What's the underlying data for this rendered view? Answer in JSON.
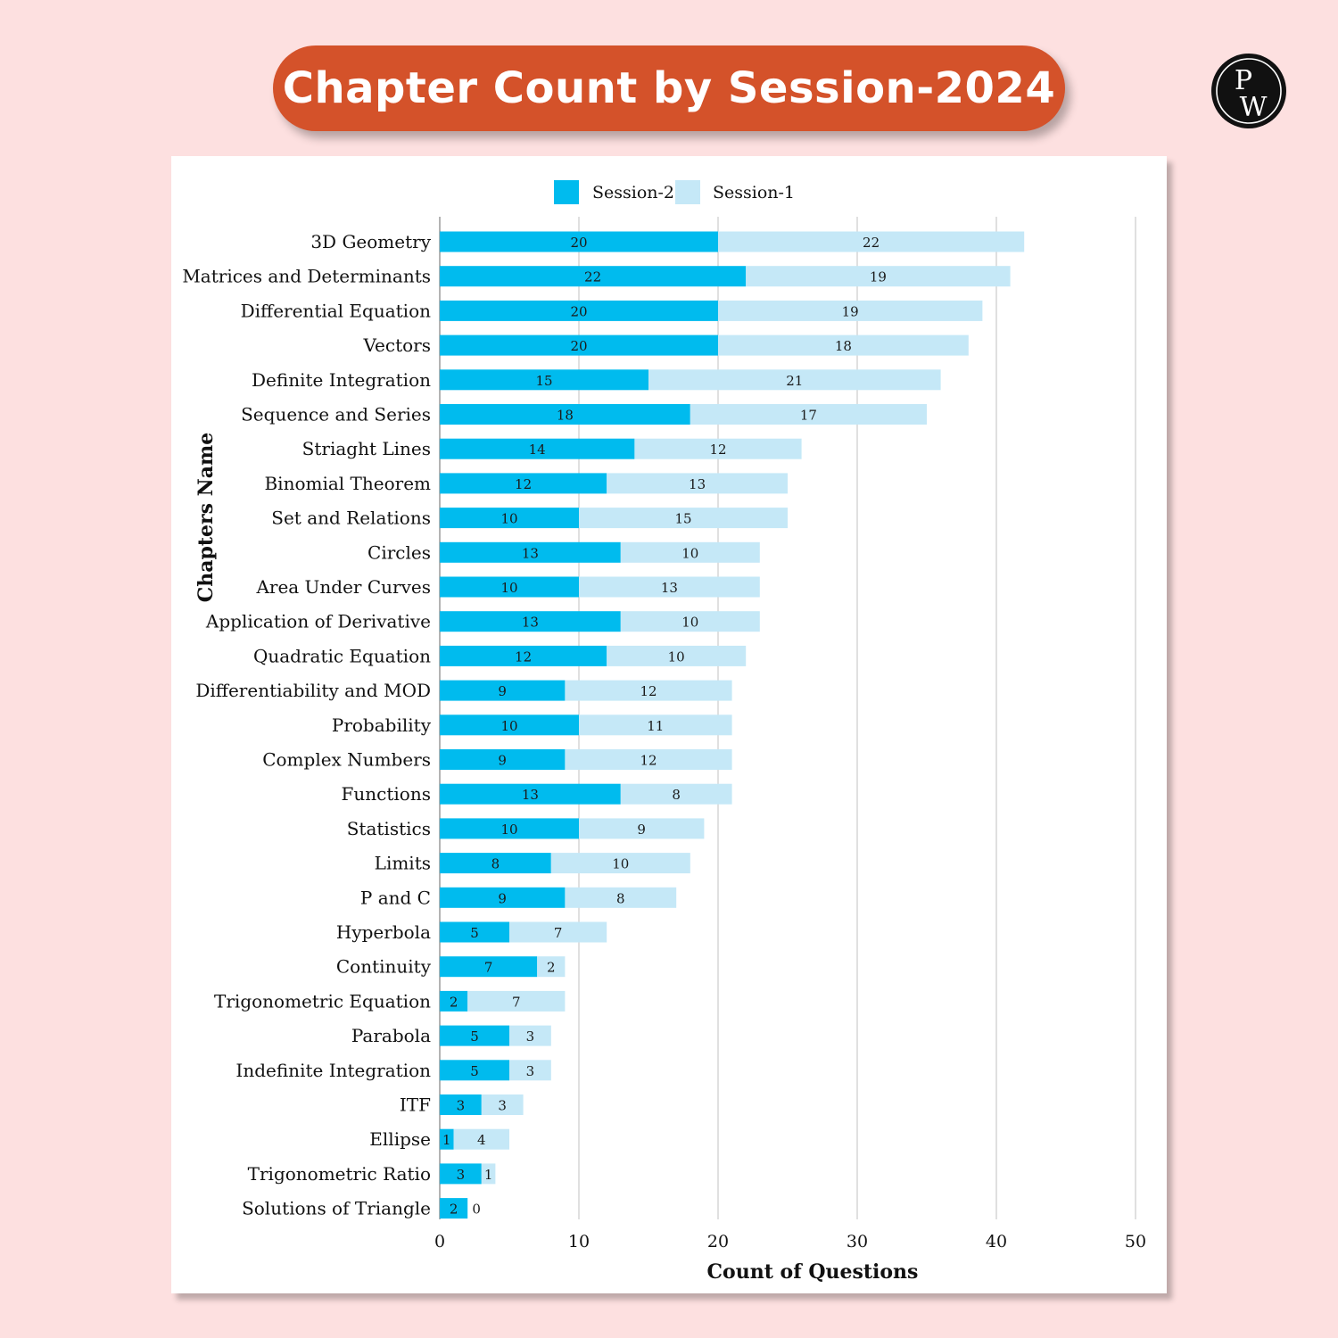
{
  "header": {
    "title": "Chapter Count by Session-2024",
    "logo_text": "PW"
  },
  "colors": {
    "background": "#fde0e0",
    "title_pill": "#d4522a",
    "session2": "#00bbee",
    "session1": "#c5e8f7"
  },
  "chart_data": {
    "type": "bar",
    "orientation": "horizontal",
    "stacked": true,
    "xlabel": "Count of Questions",
    "ylabel": "Chapters Name",
    "xlim": [
      0,
      50
    ],
    "xticks": [
      0,
      10,
      20,
      30,
      40,
      50
    ],
    "grid": "vertical",
    "legend_position": "top",
    "categories": [
      "3D Geometry",
      "Matrices and Determinants",
      "Differential Equation",
      "Vectors",
      "Definite Integration",
      "Sequence and Series",
      "Striaght Lines",
      "Binomial Theorem",
      "Set and Relations",
      "Circles",
      "Area Under Curves",
      "Application of Derivative",
      "Quadratic Equation",
      "Differentiability and MOD",
      "Probability",
      "Complex Numbers",
      "Functions",
      "Statistics",
      "Limits",
      "P and C",
      "Hyperbola",
      "Continuity",
      "Trigonometric Equation",
      "Parabola",
      "Indefinite Integration",
      "ITF",
      "Ellipse",
      "Trigonometric Ratio",
      "Solutions of Triangle"
    ],
    "series": [
      {
        "name": "Session-2",
        "color": "#00bbee",
        "values": [
          20,
          22,
          20,
          20,
          15,
          18,
          14,
          12,
          10,
          13,
          10,
          13,
          12,
          9,
          10,
          9,
          13,
          10,
          8,
          9,
          5,
          7,
          2,
          5,
          5,
          3,
          1,
          3,
          2
        ]
      },
      {
        "name": "Session-1",
        "color": "#c5e8f7",
        "values": [
          22,
          19,
          19,
          18,
          21,
          17,
          12,
          13,
          15,
          10,
          13,
          10,
          10,
          12,
          11,
          12,
          8,
          9,
          10,
          8,
          7,
          2,
          7,
          3,
          3,
          3,
          4,
          1,
          0
        ]
      }
    ]
  }
}
